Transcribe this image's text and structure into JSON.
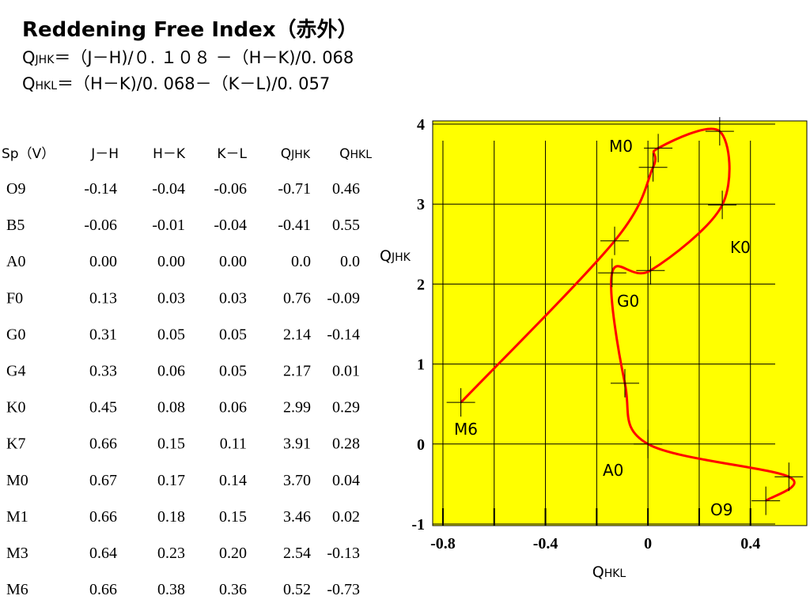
{
  "header": {
    "title": "Reddening Free Index（赤外）",
    "formula_1": {
      "q": "Q",
      "sub": "JHK",
      "rest": "＝（J－H)/０. １０８ －（H－K)/0. 068"
    },
    "formula_2": {
      "q": "Q",
      "sub": "HKL",
      "rest": "＝（H－K)/0. 068－（K－L)/0. 057"
    }
  },
  "table": {
    "columns": [
      "Sp（V）",
      "J－H",
      "H－K",
      "K－L",
      {
        "q": "Q",
        "sub": "JHK"
      },
      {
        "q": "Q",
        "sub": "HKL"
      }
    ],
    "rows": [
      [
        "O9",
        "-0.14",
        "-0.04",
        "-0.06",
        "-0.71",
        "0.46"
      ],
      [
        "B5",
        "-0.06",
        "-0.01",
        "-0.04",
        "-0.41",
        "0.55"
      ],
      [
        "A0",
        "0.00",
        "0.00",
        "0.00",
        "0.0",
        "0.0"
      ],
      [
        "F0",
        "0.13",
        "0.03",
        "0.03",
        "0.76",
        "-0.09"
      ],
      [
        "G0",
        "0.31",
        "0.05",
        "0.05",
        "2.14",
        "-0.14"
      ],
      [
        "G4",
        "0.33",
        "0.06",
        "0.05",
        "2.17",
        "0.01"
      ],
      [
        "K0",
        "0.45",
        "0.08",
        "0.06",
        "2.99",
        "0.29"
      ],
      [
        "K7",
        "0.66",
        "0.15",
        "0.11",
        "3.91",
        "0.28"
      ],
      [
        "M0",
        "0.67",
        "0.17",
        "0.14",
        "3.70",
        "0.04"
      ],
      [
        "M1",
        "0.66",
        "0.18",
        "0.15",
        "3.46",
        "0.02"
      ],
      [
        "M3",
        "0.64",
        "0.23",
        "0.20",
        "2.54",
        "-0.13"
      ],
      [
        "M6",
        "0.66",
        "0.38",
        "0.36",
        "0.52",
        "-0.73"
      ]
    ]
  },
  "chart_data": {
    "type": "line",
    "x_label": {
      "q": "Q",
      "sub": "HKL"
    },
    "y_label": {
      "q": "Q",
      "sub": "JHK"
    },
    "xlim": [
      -0.84,
      0.62
    ],
    "ylim": [
      -1.02,
      4.04
    ],
    "xticks": [
      -0.8,
      -0.4,
      0,
      0.4
    ],
    "xminor": [
      -0.6,
      -0.2,
      0.2
    ],
    "yticks": [
      -1,
      0,
      1,
      2,
      3,
      4
    ],
    "grid": true,
    "background": "#ffff00",
    "line_color": "#ff0000",
    "marker_color": "#000000",
    "x": [
      -0.73,
      -0.13,
      0.02,
      0.04,
      0.28,
      0.29,
      0.01,
      -0.14,
      -0.09,
      0,
      0.55,
      0.46
    ],
    "y": [
      0.52,
      2.54,
      3.46,
      3.7,
      3.91,
      2.99,
      2.17,
      2.14,
      0.76,
      0,
      -0.41,
      -0.71
    ],
    "annotations": [
      "M0",
      "K0",
      "G0",
      "M6",
      "A0",
      "O9"
    ]
  }
}
